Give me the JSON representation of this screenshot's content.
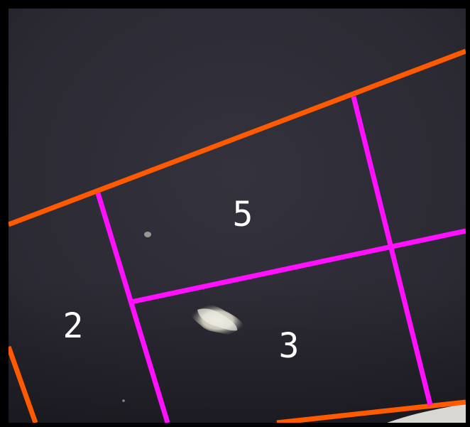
{
  "map": {
    "cells": [
      {
        "id": "cell-5",
        "label": "5"
      },
      {
        "id": "cell-2",
        "label": "2"
      },
      {
        "id": "cell-3",
        "label": "3"
      }
    ],
    "colors": {
      "background": "#2a2933",
      "outer_boundary": "#ff5a00",
      "grid_lines": "#ff10ff",
      "label_text": "#ffffff",
      "border": "#000000"
    }
  }
}
